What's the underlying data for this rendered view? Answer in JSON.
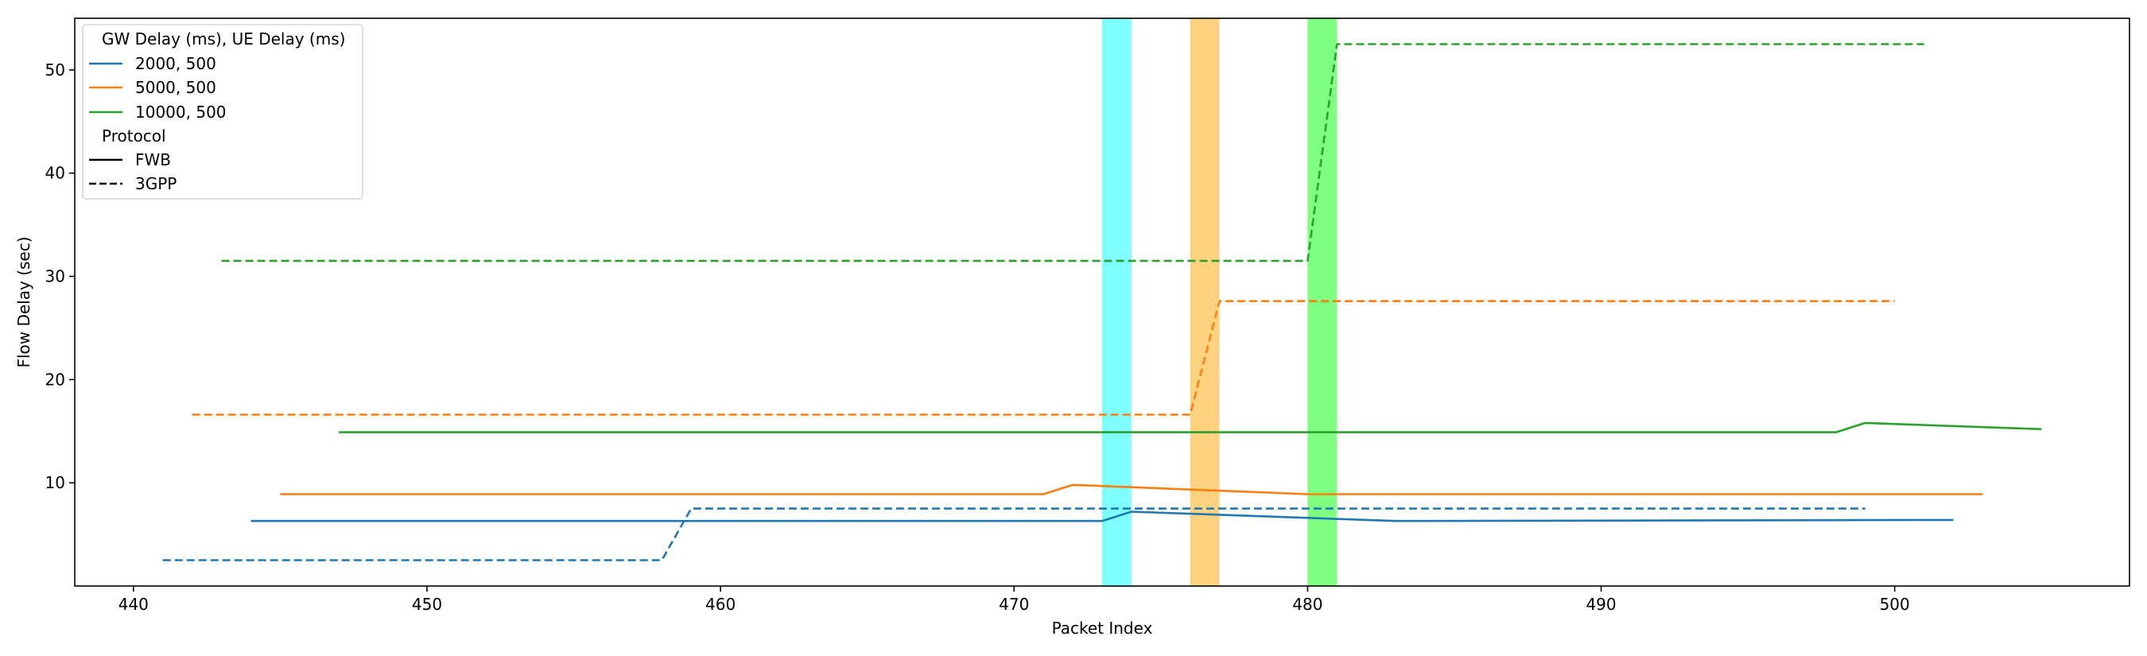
{
  "chart_data": {
    "type": "line",
    "xlabel": "Packet Index",
    "ylabel": "Flow Delay (sec)",
    "xlim": [
      438,
      508
    ],
    "ylim": [
      0,
      55
    ],
    "x_ticks": [
      440,
      450,
      460,
      470,
      480,
      490,
      500
    ],
    "y_ticks": [
      10,
      20,
      30,
      40,
      50
    ],
    "grid": false,
    "legend": {
      "placement": "top-left",
      "group1_title": "GW Delay (ms), UE Delay (ms)",
      "group1_entries": [
        {
          "label": "2000, 500",
          "color": "#1f77b4"
        },
        {
          "label": "5000, 500",
          "color": "#ff7f0e"
        },
        {
          "label": "10000, 500",
          "color": "#2ca02c"
        }
      ],
      "group2_title": "Protocol",
      "group2_entries": [
        {
          "label": "FWB",
          "style": "solid"
        },
        {
          "label": "3GPP",
          "style": "dashed"
        }
      ]
    },
    "spans": [
      {
        "x0": 473,
        "x1": 474,
        "color": "#00ffff",
        "opacity": 0.5
      },
      {
        "x0": 476,
        "x1": 477,
        "color": "#ffa500",
        "opacity": 0.5
      },
      {
        "x0": 480,
        "x1": 481,
        "color": "#00ff00",
        "opacity": 0.5
      }
    ],
    "series": [
      {
        "config": "2000, 500",
        "protocol": "FWB",
        "color": "#1f77b4",
        "dash": false,
        "points": [
          [
            444,
            6.3
          ],
          [
            473,
            6.3
          ],
          [
            474,
            7.2
          ],
          [
            483,
            6.3
          ],
          [
            502,
            6.4
          ]
        ]
      },
      {
        "config": "5000, 500",
        "protocol": "FWB",
        "color": "#ff7f0e",
        "dash": false,
        "points": [
          [
            445,
            8.9
          ],
          [
            471,
            8.9
          ],
          [
            472,
            9.8
          ],
          [
            480,
            8.9
          ],
          [
            503,
            8.9
          ]
        ]
      },
      {
        "config": "10000, 500",
        "protocol": "FWB",
        "color": "#2ca02c",
        "dash": false,
        "points": [
          [
            447,
            14.9
          ],
          [
            498,
            14.9
          ],
          [
            499,
            15.8
          ],
          [
            505,
            15.2
          ]
        ]
      },
      {
        "config": "2000, 500",
        "protocol": "3GPP",
        "color": "#1f77b4",
        "dash": true,
        "points": [
          [
            441,
            2.5
          ],
          [
            458,
            2.5
          ],
          [
            459,
            7.5
          ],
          [
            499,
            7.5
          ]
        ]
      },
      {
        "config": "5000, 500",
        "protocol": "3GPP",
        "color": "#ff7f0e",
        "dash": true,
        "points": [
          [
            442,
            16.6
          ],
          [
            476,
            16.6
          ],
          [
            477,
            27.6
          ],
          [
            500,
            27.6
          ]
        ]
      },
      {
        "config": "10000, 500",
        "protocol": "3GPP",
        "color": "#2ca02c",
        "dash": true,
        "points": [
          [
            443,
            31.5
          ],
          [
            480,
            31.5
          ],
          [
            481,
            52.5
          ],
          [
            501,
            52.5
          ]
        ]
      }
    ]
  }
}
